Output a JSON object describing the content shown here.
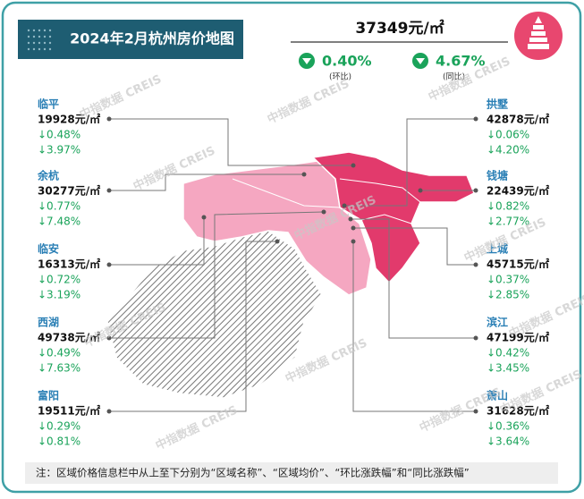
{
  "header": {
    "title": "2024年2月杭州房价地图",
    "price": "37349元/㎡",
    "mom": {
      "value": "0.40%",
      "label": "(环比)"
    },
    "yoy": {
      "value": "4.67%",
      "label": "(同比)"
    }
  },
  "watermark": "中指数据 CREIS",
  "districts": [
    {
      "name": "临平",
      "price": "19928元/㎡",
      "mom": "↓0.48%",
      "yoy": "↓3.97%"
    },
    {
      "name": "余杭",
      "price": "30277元/㎡",
      "mom": "↓0.77%",
      "yoy": "↓7.48%"
    },
    {
      "name": "临安",
      "price": "16313元/㎡",
      "mom": "↓0.72%",
      "yoy": "↓3.19%"
    },
    {
      "name": "西湖",
      "price": "49738元/㎡",
      "mom": "↓0.49%",
      "yoy": "↓7.63%"
    },
    {
      "name": "富阳",
      "price": "19511元/㎡",
      "mom": "↓0.29%",
      "yoy": "↓0.81%"
    },
    {
      "name": "拱墅",
      "price": "42878元/㎡",
      "mom": "↓0.06%",
      "yoy": "↓4.20%"
    },
    {
      "name": "钱塘",
      "price": "22439元/㎡",
      "mom": "↓0.82%",
      "yoy": "↓2.77%"
    },
    {
      "name": "上城",
      "price": "45715元/㎡",
      "mom": "↓0.37%",
      "yoy": "↓2.85%"
    },
    {
      "name": "滨江",
      "price": "47199元/㎡",
      "mom": "↓0.42%",
      "yoy": "↓3.45%"
    },
    {
      "name": "萧山",
      "price": "31628元/㎡",
      "mom": "↓0.36%",
      "yoy": "↓3.64%"
    }
  ],
  "note": "注：区域价格信息栏中从上至下分别为“区域名称”、“区域均价”、“环比涨跌幅”和“同比涨跌幅”"
}
